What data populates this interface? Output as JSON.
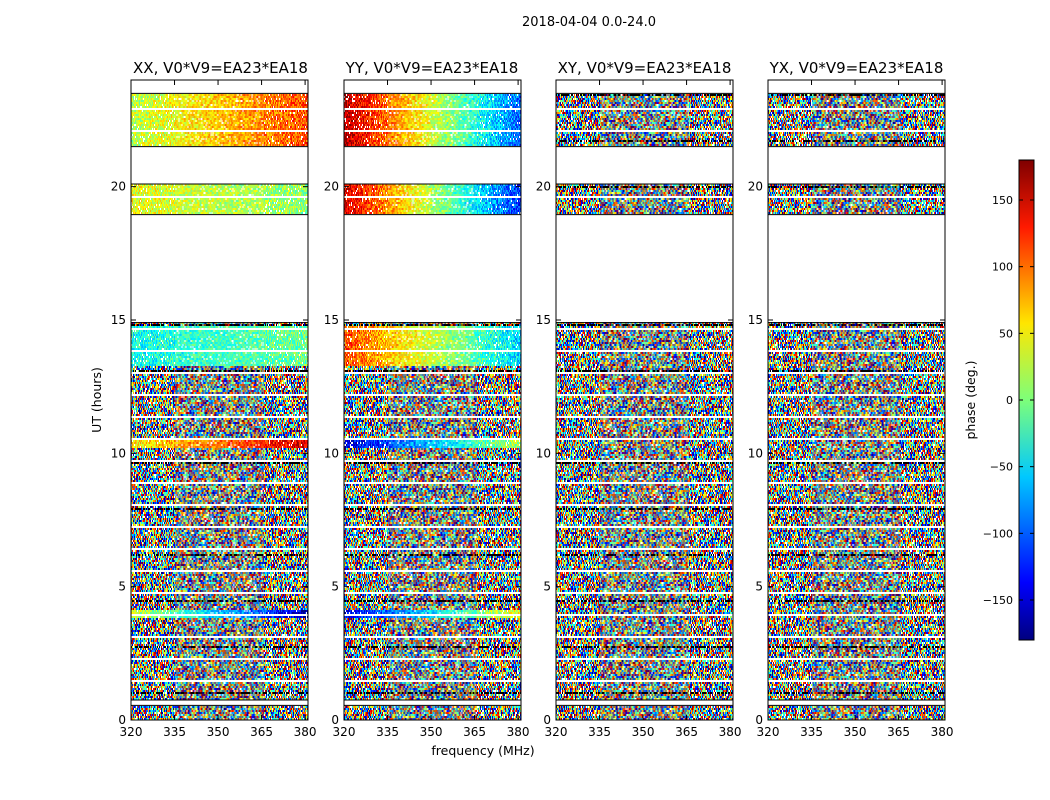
{
  "figure": {
    "suptitle": "2018-04-04 0.0-24.0",
    "xlabel": "frequency (MHz)",
    "ylabel": "UT (hours)"
  },
  "colorbar": {
    "label": "phase (deg.)",
    "range": [
      -180,
      180
    ],
    "ticks": [
      150,
      100,
      50,
      0,
      -50,
      -100,
      -150
    ],
    "tick_labels": [
      "150",
      "100",
      "50",
      "0",
      "−50",
      "−100",
      "−150"
    ],
    "colormap": "jet",
    "colors": [
      "#00007f",
      "#0000ff",
      "#00a0ff",
      "#30ffc8",
      "#ffff00",
      "#ff8c00",
      "#ff0000",
      "#7f0000"
    ]
  },
  "chart_data": [
    {
      "type": "heatmap",
      "title": "XX, V0*V9=EA23*EA18",
      "xlim": [
        320,
        381
      ],
      "ylim": [
        0,
        24
      ],
      "xticks": [
        320,
        335,
        350,
        365,
        380
      ],
      "xtick_labels": [
        "320",
        "335",
        "350",
        "365",
        "380"
      ],
      "yticks": [
        0,
        5,
        10,
        15,
        20
      ],
      "ytick_labels": [
        "0",
        "5",
        "10",
        "15",
        "20"
      ],
      "data_ranges_ut": [
        [
          0.0,
          0.55
        ],
        [
          0.75,
          4.5
        ],
        [
          4.5,
          13.2
        ],
        [
          13.2,
          14.9
        ],
        [
          18.95,
          20.1
        ],
        [
          21.5,
          23.5
        ]
      ],
      "flagged_gaps_ut": [
        [
          0.55,
          0.75
        ],
        [
          14.9,
          18.95
        ],
        [
          20.1,
          21.5
        ],
        [
          23.5,
          24.0
        ]
      ],
      "coherent_bands": [
        {
          "ut": [
            13.3,
            14.8
          ],
          "phase_start_deg": -40,
          "phase_end_deg": -5
        },
        {
          "ut": [
            18.95,
            20.1
          ],
          "phase_start_deg": 40,
          "phase_end_deg": 5
        },
        {
          "ut": [
            21.5,
            23.5
          ],
          "phase_start_deg": 20,
          "phase_end_deg": 110
        },
        {
          "ut": [
            10.2,
            10.55
          ],
          "phase_start_deg": 45,
          "phase_end_deg": 150
        },
        {
          "ut": [
            3.8,
            4.15
          ],
          "phase_start_deg": 30,
          "phase_end_deg": -160
        }
      ]
    },
    {
      "type": "heatmap",
      "title": "YY, V0*V9=EA23*EA18",
      "xlim": [
        320,
        381
      ],
      "ylim": [
        0,
        24
      ],
      "xticks": [
        320,
        335,
        350,
        365,
        380
      ],
      "xtick_labels": [
        "320",
        "335",
        "350",
        "365",
        "380"
      ],
      "yticks": [
        0,
        5,
        10,
        15,
        20
      ],
      "ytick_labels": [
        "0",
        "5",
        "10",
        "15",
        "20"
      ],
      "data_ranges_ut": [
        [
          0.0,
          0.55
        ],
        [
          0.75,
          4.5
        ],
        [
          4.5,
          13.2
        ],
        [
          13.2,
          14.9
        ],
        [
          18.95,
          20.1
        ],
        [
          21.5,
          23.5
        ]
      ],
      "flagged_gaps_ut": [
        [
          0.55,
          0.75
        ],
        [
          14.9,
          18.95
        ],
        [
          20.1,
          21.5
        ],
        [
          23.5,
          24.0
        ]
      ],
      "coherent_bands": [
        {
          "ut": [
            13.3,
            14.8
          ],
          "phase_start_deg": 110,
          "phase_end_deg": -60
        },
        {
          "ut": [
            18.95,
            20.1
          ],
          "phase_start_deg": 150,
          "phase_end_deg": -120
        },
        {
          "ut": [
            21.5,
            23.5
          ],
          "phase_start_deg": 160,
          "phase_end_deg": -100
        },
        {
          "ut": [
            10.2,
            10.55
          ],
          "phase_start_deg": -150,
          "phase_end_deg": 20
        },
        {
          "ut": [
            3.8,
            4.15
          ],
          "phase_start_deg": -140,
          "phase_end_deg": 40
        }
      ]
    },
    {
      "type": "heatmap",
      "title": "XY, V0*V9=EA23*EA18",
      "xlim": [
        320,
        381
      ],
      "ylim": [
        0,
        24
      ],
      "xticks": [
        320,
        335,
        350,
        365,
        380
      ],
      "xtick_labels": [
        "320",
        "335",
        "350",
        "365",
        "380"
      ],
      "yticks": [
        0,
        5,
        10,
        15,
        20
      ],
      "ytick_labels": [
        "0",
        "5",
        "10",
        "15",
        "20"
      ],
      "data_ranges_ut": [
        [
          0.0,
          0.55
        ],
        [
          0.75,
          4.5
        ],
        [
          4.5,
          13.2
        ],
        [
          13.2,
          14.9
        ],
        [
          18.95,
          20.1
        ],
        [
          21.5,
          23.5
        ]
      ],
      "flagged_gaps_ut": [
        [
          0.55,
          0.75
        ],
        [
          14.9,
          18.95
        ],
        [
          20.1,
          21.5
        ],
        [
          23.5,
          24.0
        ]
      ],
      "coherent_bands": []
    },
    {
      "type": "heatmap",
      "title": "YX, V0*V9=EA23*EA18",
      "xlim": [
        320,
        381
      ],
      "ylim": [
        0,
        24
      ],
      "xticks": [
        320,
        335,
        350,
        365,
        380
      ],
      "xtick_labels": [
        "320",
        "335",
        "350",
        "365",
        "380"
      ],
      "yticks": [
        0,
        5,
        10,
        15,
        20
      ],
      "ytick_labels": [
        "0",
        "5",
        "10",
        "15",
        "20"
      ],
      "data_ranges_ut": [
        [
          0.0,
          0.55
        ],
        [
          0.75,
          4.5
        ],
        [
          4.5,
          13.2
        ],
        [
          13.2,
          14.9
        ],
        [
          18.95,
          20.1
        ],
        [
          21.5,
          23.5
        ]
      ],
      "flagged_gaps_ut": [
        [
          0.55,
          0.75
        ],
        [
          14.9,
          18.95
        ],
        [
          20.1,
          21.5
        ],
        [
          23.5,
          24.0
        ]
      ],
      "coherent_bands": []
    }
  ]
}
